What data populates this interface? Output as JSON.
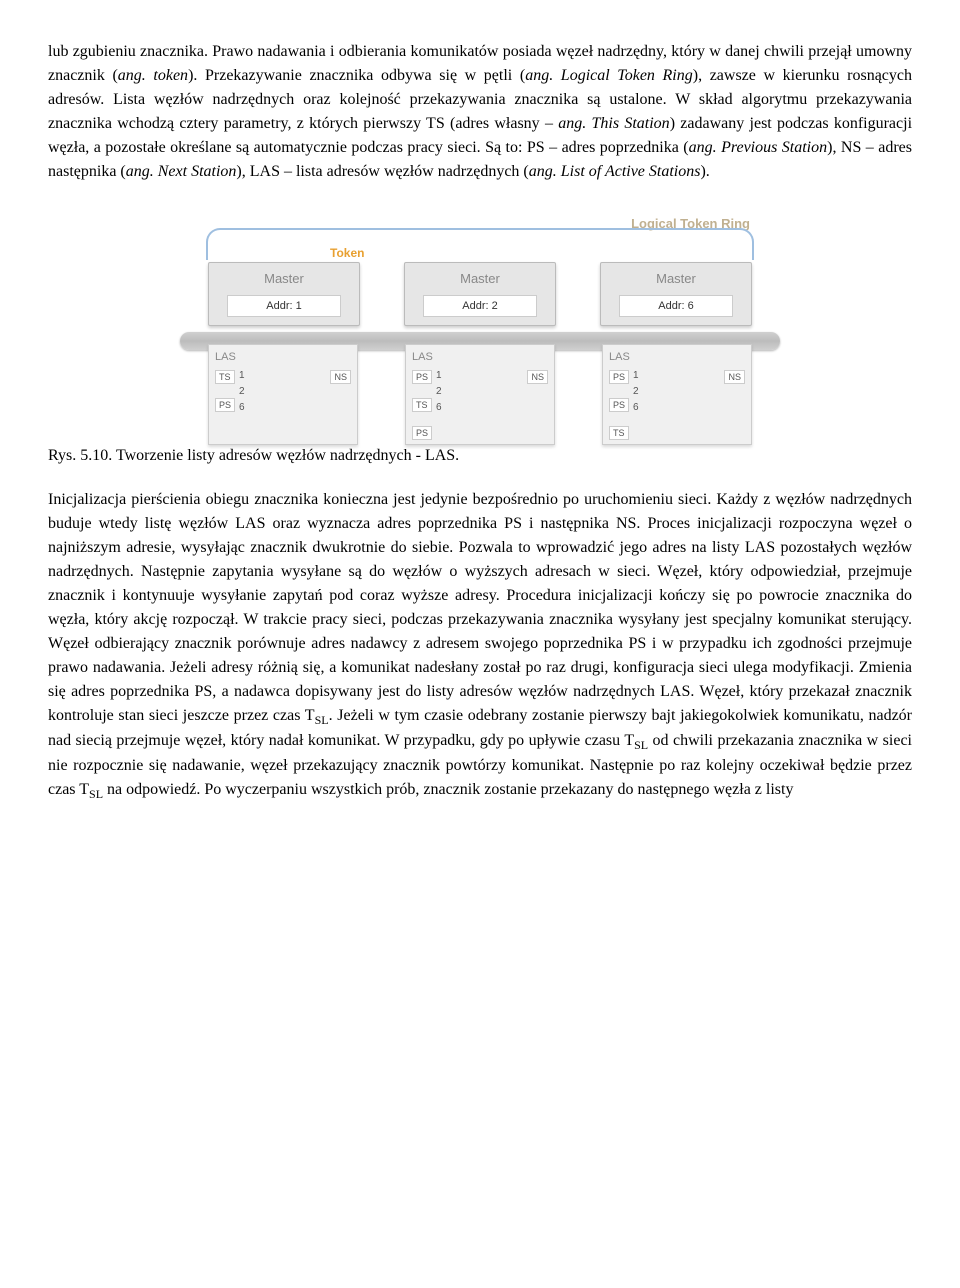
{
  "para1_parts": [
    {
      "t": "lub zgubieniu znacznika. Prawo nadawania i odbierania komunikatów posiada węzeł nadrzędny, który w danej chwili przejął umowny znacznik (",
      "i": false
    },
    {
      "t": "ang. token",
      "i": true
    },
    {
      "t": "). Przekazywanie znacznika odbywa się w pętli (",
      "i": false
    },
    {
      "t": "ang. Logical Token Ring",
      "i": true
    },
    {
      "t": "), zawsze w kierunku rosnących adresów. Lista węzłów nadrzędnych oraz kolejność przekazywania znacznika są ustalone. W skład algorytmu przekazywania znacznika wchodzą cztery parametry, z których pierwszy TS (adres własny – ",
      "i": false
    },
    {
      "t": "ang. This Station",
      "i": true
    },
    {
      "t": ") zadawany jest podczas konfiguracji węzła, a pozostałe określane są automatycznie podczas pracy sieci. Są to: PS – adres poprzednika (",
      "i": false
    },
    {
      "t": "ang. Previous Station",
      "i": true
    },
    {
      "t": "), NS – adres następnika (",
      "i": false
    },
    {
      "t": "ang. Next Station",
      "i": true
    },
    {
      "t": "), LAS – lista adresów węzłów nadrzędnych (",
      "i": false
    },
    {
      "t": "ang. List of Active Stations",
      "i": true
    },
    {
      "t": ").",
      "i": false
    }
  ],
  "figure": {
    "ltr_label": "Logical Token Ring",
    "token_label": "Token",
    "masters": [
      {
        "title": "Master",
        "addr": "Addr: 1",
        "las": {
          "title": "LAS",
          "left": [
            "TS",
            "PS"
          ],
          "mid": [
            "1",
            "2",
            "6"
          ],
          "right": [
            "NS"
          ]
        }
      },
      {
        "title": "Master",
        "addr": "Addr: 2",
        "las": {
          "title": "LAS",
          "left": [
            "PS",
            "TS",
            "PS"
          ],
          "mid": [
            "1",
            "2",
            "6"
          ],
          "right": [
            "NS"
          ]
        }
      },
      {
        "title": "Master",
        "addr": "Addr: 6",
        "las": {
          "title": "LAS",
          "left": [
            "PS",
            "PS",
            "TS"
          ],
          "mid": [
            "1",
            "2",
            "6"
          ],
          "right": [
            "NS"
          ]
        }
      }
    ]
  },
  "fig_caption": "Rys. 5.10. Tworzenie listy adresów węzłów nadrzędnych - LAS.",
  "para2_parts": [
    {
      "t": "Inicjalizacja pierścienia obiegu znacznika konieczna jest jedynie bezpośrednio po uruchomieniu sieci. Każdy z węzłów nadrzędnych buduje wtedy listę węzłów LAS oraz wyznacza adres poprzednika PS i następnika NS. Proces inicjalizacji rozpoczyna węzeł o najniższym adresie, wysyłając znacznik dwukrotnie do siebie. Pozwala to wprowadzić jego adres na listy LAS pozostałych węzłów nadrzędnych. Następnie zapytania wysyłane są do węzłów o wyższych adresach w sieci. Węzeł, który odpowiedział, przejmuje znacznik i kontynuuje wysyłanie zapytań pod coraz wyższe adresy. Procedura inicjalizacji kończy się po powrocie znacznika do węzła, który akcję rozpoczął. W trakcie pracy sieci, podczas przekazywania znacznika wysyłany jest specjalny komunikat sterujący. Węzeł odbierający znacznik porównuje adres nadawcy z adresem swojego poprzednika PS i w przypadku ich zgodności przejmuje prawo nadawania. Jeżeli adresy różnią się, a komunikat nadesłany został po raz drugi, konfiguracja sieci ulega modyfikacji. Zmienia się adres poprzednika PS, a nadawca dopisywany jest do listy adresów węzłów nadrzędnych LAS. Węzeł, który przekazał znacznik kontroluje stan sieci jeszcze przez czas T",
      "i": false
    },
    {
      "t": "SL",
      "sub": true
    },
    {
      "t": ". Jeżeli w tym czasie odebrany zostanie pierwszy bajt jakiegokolwiek komunikatu, nadzór nad siecią przejmuje węzeł, który nadał komunikat. W przypadku, gdy po upływie czasu T",
      "i": false
    },
    {
      "t": "SL",
      "sub": true
    },
    {
      "t": " od chwili przekazania znacznika w sieci nie rozpocznie się nadawanie, węzeł przekazujący znacznik powtórzy komunikat. Następnie po raz kolejny oczekiwał będzie przez czas T",
      "i": false
    },
    {
      "t": "SL",
      "sub": true
    },
    {
      "t": " na odpowiedź. Po wyczerpaniu wszystkich prób, znacznik zostanie przekazany do następnego węzła z listy",
      "i": false
    }
  ]
}
